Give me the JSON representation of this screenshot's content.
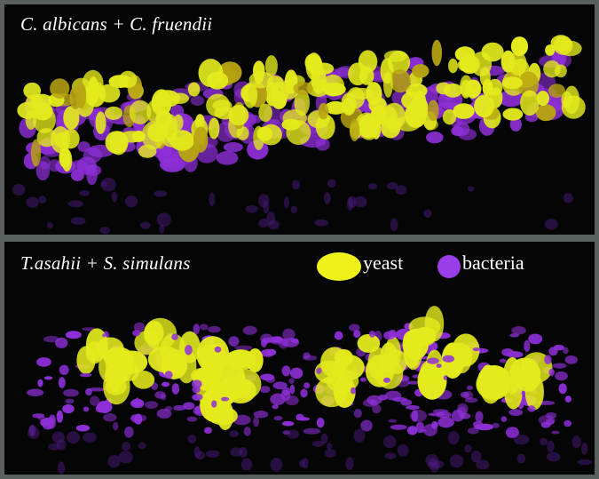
{
  "panels": [
    {
      "label": "C. albicans + C. fruendii"
    },
    {
      "label": "T.asahii + S. simulans"
    }
  ],
  "legend": {
    "yeast": {
      "label": "yeast",
      "color": "#eef21a"
    },
    "bacteria": {
      "label": "bacteria",
      "color": "#9a3ee8"
    }
  },
  "colors": {
    "background": "#050506",
    "frame": "#5a605e",
    "yeast": "#e4ea1c",
    "yeast_dark": "#b8a412",
    "bacteria": "#8e2fd8",
    "bacteria_dim": "#4a1a7a"
  }
}
